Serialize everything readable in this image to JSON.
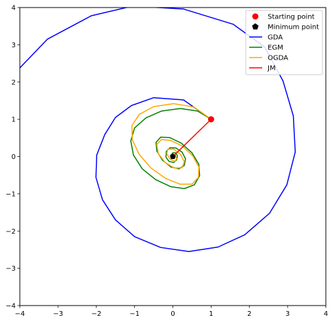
{
  "chart_data": {
    "type": "line",
    "title": "",
    "xlabel": "",
    "ylabel": "",
    "xlim": [
      -4,
      4
    ],
    "ylim": [
      -4,
      4
    ],
    "xticks": [
      -4,
      -3,
      -2,
      -1,
      0,
      1,
      2,
      3,
      4
    ],
    "yticks": [
      -4,
      -3,
      -2,
      -1,
      0,
      1,
      2,
      3,
      4
    ],
    "grid": false,
    "legend_position": "top-right",
    "legend": [
      {
        "label": "Starting point",
        "marker": "circle",
        "color": "#ff0000"
      },
      {
        "label": "Minimum point",
        "marker": "pentagon",
        "color": "#000000"
      },
      {
        "label": "GDA",
        "marker": "line",
        "color": "#0000ff"
      },
      {
        "label": "EGM",
        "marker": "line",
        "color": "#008000"
      },
      {
        "label": "OGDA",
        "marker": "line",
        "color": "#ffa500"
      },
      {
        "label": "JM",
        "marker": "line",
        "color": "#ff0000"
      }
    ],
    "points": [
      {
        "name": "Starting point",
        "x": 1.0,
        "y": 1.0,
        "marker": "circle",
        "color": "#ff0000"
      },
      {
        "name": "Minimum point",
        "x": 0.0,
        "y": 0.0,
        "marker": "pentagon",
        "color": "#000000"
      }
    ],
    "series": [
      {
        "name": "GDA",
        "color": "#0000ff",
        "x": [
          1.0,
          0.28,
          -0.5,
          -1.08,
          -1.5,
          -1.78,
          -1.99,
          -2.01,
          -1.84,
          -1.5,
          -1.0,
          -0.32,
          0.42,
          1.18,
          1.88,
          2.53,
          2.98,
          3.2,
          3.15,
          2.88,
          2.4,
          1.58,
          0.28,
          -1.05,
          -2.13,
          -3.28,
          -4.0
        ],
        "y": [
          1.0,
          1.52,
          1.58,
          1.37,
          1.05,
          0.59,
          0.04,
          -0.56,
          -1.16,
          -1.7,
          -2.15,
          -2.44,
          -2.55,
          -2.43,
          -2.1,
          -1.52,
          -0.76,
          0.12,
          1.09,
          2.03,
          2.94,
          3.55,
          3.96,
          4.04,
          3.78,
          3.15,
          2.38
        ]
      },
      {
        "name": "EGM",
        "color": "#008000",
        "x": [
          1.0,
          0.65,
          0.2,
          -0.3,
          -0.7,
          -1.0,
          -1.1,
          -1.03,
          -0.8,
          -0.45,
          -0.05,
          0.3,
          0.56,
          0.7,
          0.68,
          0.5,
          0.22,
          -0.08,
          -0.32,
          -0.44,
          -0.42,
          -0.27,
          -0.05,
          0.16,
          0.3,
          0.33,
          0.24,
          0.08,
          -0.07,
          -0.17,
          -0.18,
          -0.1,
          0.02,
          0.1,
          0.12,
          0.07,
          0.0,
          -0.05,
          -0.05,
          0.0
        ],
        "y": [
          1.0,
          1.22,
          1.29,
          1.22,
          1.04,
          0.77,
          0.42,
          0.04,
          -0.33,
          -0.62,
          -0.81,
          -0.86,
          -0.76,
          -0.52,
          -0.21,
          0.1,
          0.36,
          0.51,
          0.52,
          0.38,
          0.15,
          -0.1,
          -0.28,
          -0.33,
          -0.24,
          -0.06,
          0.12,
          0.23,
          0.24,
          0.14,
          -0.02,
          -0.13,
          -0.16,
          -0.09,
          0.02,
          0.1,
          0.1,
          0.04,
          -0.03,
          0.0
        ]
      },
      {
        "name": "OGDA",
        "color": "#ffa500",
        "x": [
          1.0,
          0.55,
          0.02,
          -0.5,
          -0.88,
          -1.07,
          -1.06,
          -0.88,
          -0.58,
          -0.2,
          0.18,
          0.5,
          0.67,
          0.68,
          0.52,
          0.25,
          -0.05,
          -0.3,
          -0.42,
          -0.38,
          -0.2,
          0.04,
          0.24,
          0.3,
          0.2,
          0.02,
          -0.13,
          -0.16,
          -0.07,
          0.05,
          0.1,
          0.05,
          -0.02,
          0.0
        ],
        "y": [
          1.0,
          1.33,
          1.42,
          1.34,
          1.13,
          0.83,
          0.45,
          0.06,
          -0.3,
          -0.58,
          -0.74,
          -0.74,
          -0.56,
          -0.28,
          0.02,
          0.28,
          0.43,
          0.46,
          0.32,
          0.08,
          -0.16,
          -0.31,
          -0.3,
          -0.14,
          0.06,
          0.2,
          0.2,
          0.08,
          -0.07,
          -0.13,
          -0.06,
          0.05,
          0.06,
          0.0
        ]
      },
      {
        "name": "JM",
        "color": "#ff0000",
        "x": [
          1.0,
          0.0
        ],
        "y": [
          1.0,
          0.0
        ]
      }
    ]
  }
}
